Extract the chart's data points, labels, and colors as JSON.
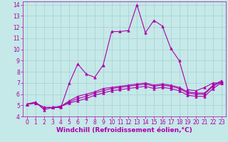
{
  "xlabel": "Windchill (Refroidissement éolien,°C)",
  "background_color": "#c5e8e8",
  "grid_color": "#a8d0d0",
  "line_color": "#aa00aa",
  "xlim": [
    -0.5,
    23.5
  ],
  "ylim": [
    4,
    14.3
  ],
  "xticks": [
    0,
    1,
    2,
    3,
    4,
    5,
    6,
    7,
    8,
    9,
    10,
    11,
    12,
    13,
    14,
    15,
    16,
    17,
    18,
    19,
    20,
    21,
    22,
    23
  ],
  "yticks": [
    4,
    5,
    6,
    7,
    8,
    9,
    10,
    11,
    12,
    13,
    14
  ],
  "series": [
    [
      5.1,
      5.3,
      4.6,
      4.8,
      4.8,
      7.0,
      8.7,
      7.8,
      7.5,
      8.6,
      11.6,
      11.6,
      11.7,
      14.0,
      11.5,
      12.6,
      12.1,
      10.1,
      9.0,
      6.4,
      6.3,
      6.6,
      7.0,
      7.0
    ],
    [
      5.1,
      5.2,
      4.8,
      4.8,
      4.9,
      5.2,
      5.4,
      5.6,
      5.9,
      6.1,
      6.3,
      6.4,
      6.5,
      6.6,
      6.7,
      6.5,
      6.6,
      6.5,
      6.3,
      5.9,
      5.8,
      5.8,
      6.5,
      7.0
    ],
    [
      5.1,
      5.2,
      4.8,
      4.8,
      4.9,
      5.3,
      5.6,
      5.8,
      6.1,
      6.3,
      6.5,
      6.6,
      6.7,
      6.8,
      6.9,
      6.7,
      6.8,
      6.7,
      6.5,
      6.1,
      6.0,
      6.0,
      6.7,
      7.1
    ],
    [
      5.1,
      5.2,
      4.8,
      4.8,
      4.9,
      5.4,
      5.8,
      6.0,
      6.2,
      6.5,
      6.6,
      6.7,
      6.8,
      6.9,
      7.0,
      6.8,
      6.9,
      6.8,
      6.6,
      6.2,
      6.1,
      6.1,
      6.8,
      7.2
    ]
  ],
  "marker": "^",
  "marker_size": 2.5,
  "linewidth": 0.8,
  "xlabel_fontsize": 6.5,
  "tick_fontsize": 5.5
}
